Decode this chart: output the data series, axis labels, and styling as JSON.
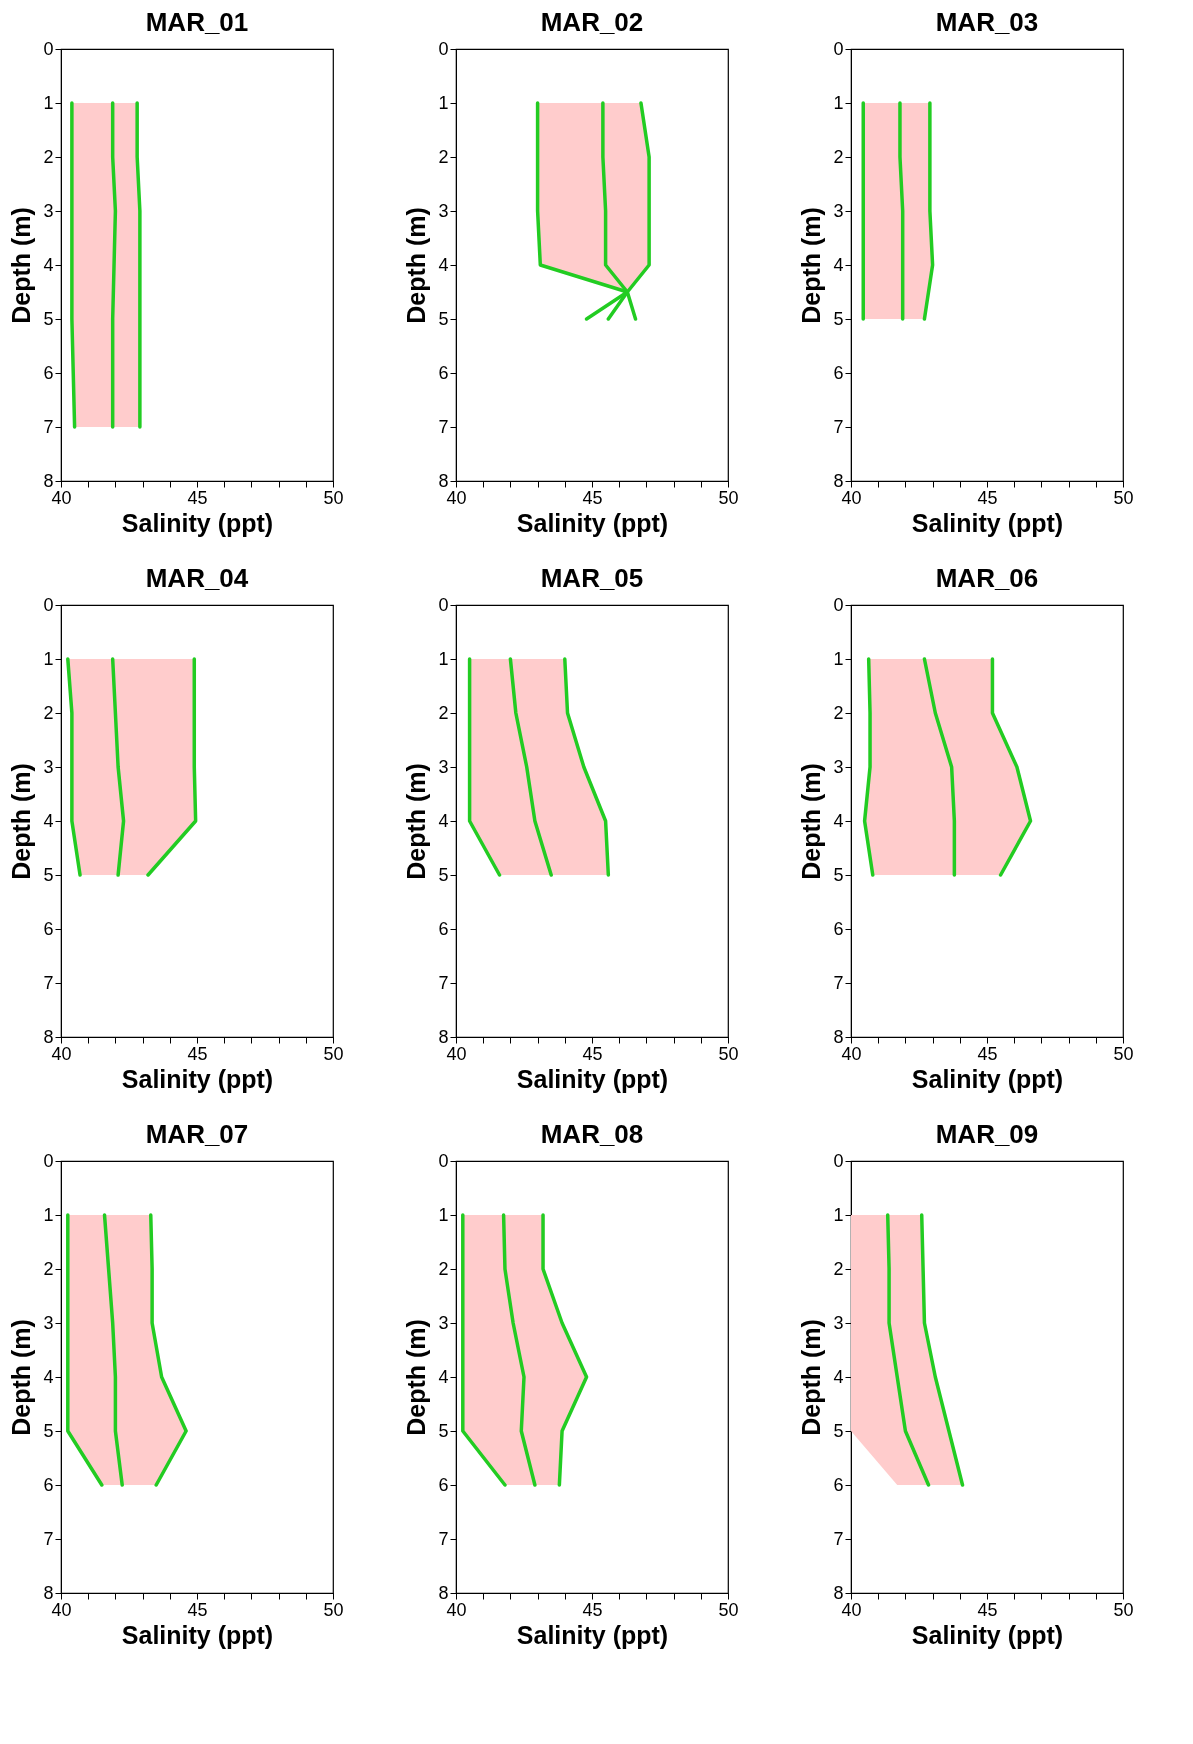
{
  "chart_data": [
    {
      "type": "line",
      "orientation": "horizontal",
      "title": "MAR_01",
      "xlabel": "Salinity (ppt)",
      "ylabel": "Depth (m)",
      "x": [
        1,
        2,
        3,
        4,
        5,
        6,
        7
      ],
      "series": [
        {
          "color": "#22cc22",
          "values": [
            40.4,
            40.4,
            40.4,
            40.4,
            40.4,
            40.45,
            40.5
          ]
        },
        {
          "color": "#22cc22",
          "values": [
            41.9,
            41.9,
            42.0,
            41.95,
            41.9,
            41.9,
            41.9
          ],
          "lower": [
            40.4,
            40.4,
            40.4,
            40.4,
            40.4,
            40.45,
            40.5
          ],
          "upper": [
            42.8,
            42.8,
            42.9,
            42.9,
            42.9,
            42.9,
            42.9
          ]
        },
        {
          "color": "#22cc22",
          "values": [
            42.8,
            42.8,
            42.9,
            42.9,
            42.9,
            42.9,
            42.9
          ]
        }
      ],
      "xlim": [
        40,
        50
      ],
      "xticks": [
        40,
        {
          "value": 41,
          "label": null
        },
        {
          "value": 42,
          "label": null
        },
        {
          "value": 43,
          "label": null
        },
        {
          "value": 44,
          "label": null
        },
        45,
        {
          "value": 46,
          "label": null
        },
        {
          "value": 47,
          "label": null
        },
        {
          "value": 48,
          "label": null
        },
        {
          "value": 49,
          "label": null
        },
        50
      ],
      "ylim": [
        8,
        0
      ],
      "yticks": [
        0,
        1,
        2,
        3,
        4,
        5,
        6,
        7,
        8
      ]
    },
    {
      "type": "line",
      "orientation": "horizontal",
      "title": "MAR_02",
      "xlabel": "Salinity (ppt)",
      "ylabel": "Depth (m)",
      "x": [
        1,
        2,
        3,
        4,
        4.5,
        5
      ],
      "series": [
        {
          "color": "#22cc22",
          "values": [
            43,
            43,
            43,
            43.1,
            46.3,
            44.8
          ]
        },
        {
          "color": "#22cc22",
          "values": [
            45.4,
            45.4,
            45.5,
            45.5,
            46.3,
            45.6
          ],
          "lower": [
            43,
            43,
            43,
            43.1,
            46.3,
            null
          ],
          "upper": [
            46.8,
            47.1,
            47.1,
            47.1,
            46.3,
            null
          ]
        },
        {
          "color": "#22cc22",
          "values": [
            46.8,
            47.1,
            47.1,
            47.1,
            46.3,
            46.6
          ]
        }
      ],
      "xlim": [
        40,
        50
      ],
      "xticks": [
        40,
        {
          "value": 41,
          "label": null
        },
        {
          "value": 42,
          "label": null
        },
        {
          "value": 43,
          "label": null
        },
        {
          "value": 44,
          "label": null
        },
        45,
        {
          "value": 46,
          "label": null
        },
        {
          "value": 47,
          "label": null
        },
        {
          "value": 48,
          "label": null
        },
        {
          "value": 49,
          "label": null
        },
        50
      ],
      "ylim": [
        8,
        0
      ],
      "yticks": [
        0,
        1,
        2,
        3,
        4,
        5,
        6,
        7,
        8
      ]
    },
    {
      "type": "line",
      "orientation": "horizontal",
      "title": "MAR_03",
      "xlabel": "Salinity (ppt)",
      "ylabel": "Depth (m)",
      "x": [
        1,
        2,
        3,
        4,
        5
      ],
      "series": [
        {
          "color": "#22cc22",
          "values": [
            40.45,
            40.45,
            40.45,
            40.45,
            40.45
          ]
        },
        {
          "color": "#22cc22",
          "values": [
            41.8,
            41.8,
            41.9,
            41.9,
            41.9
          ],
          "lower": [
            40.45,
            40.45,
            40.45,
            40.45,
            40.45
          ],
          "upper": [
            42.9,
            42.9,
            42.9,
            43.0,
            42.7
          ]
        },
        {
          "color": "#22cc22",
          "values": [
            42.9,
            42.9,
            42.9,
            43.0,
            42.7
          ]
        }
      ],
      "xlim": [
        40,
        50
      ],
      "xticks": [
        40,
        {
          "value": 41,
          "label": null
        },
        {
          "value": 42,
          "label": null
        },
        {
          "value": 43,
          "label": null
        },
        {
          "value": 44,
          "label": null
        },
        45,
        {
          "value": 46,
          "label": null
        },
        {
          "value": 47,
          "label": null
        },
        {
          "value": 48,
          "label": null
        },
        {
          "value": 49,
          "label": null
        },
        50
      ],
      "ylim": [
        8,
        0
      ],
      "yticks": [
        0,
        1,
        2,
        3,
        4,
        5,
        6,
        7,
        8
      ]
    },
    {
      "type": "line",
      "orientation": "horizontal",
      "title": "MAR_04",
      "xlabel": "Salinity (ppt)",
      "ylabel": "Depth (m)",
      "x": [
        1,
        2,
        3,
        4,
        5
      ],
      "series": [
        {
          "color": "#22cc22",
          "values": [
            40.25,
            40.4,
            40.4,
            40.4,
            40.7
          ]
        },
        {
          "color": "#22cc22",
          "values": [
            41.9,
            42.0,
            42.1,
            42.3,
            42.1
          ],
          "lower": [
            40.25,
            40.4,
            40.4,
            40.4,
            40.7
          ],
          "upper": [
            44.9,
            44.9,
            44.9,
            44.95,
            43.2
          ]
        },
        {
          "color": "#22cc22",
          "values": [
            44.9,
            44.9,
            44.9,
            44.95,
            43.2
          ]
        }
      ],
      "xlim": [
        40,
        50
      ],
      "xticks": [
        40,
        {
          "value": 41,
          "label": null
        },
        {
          "value": 42,
          "label": null
        },
        {
          "value": 43,
          "label": null
        },
        {
          "value": 44,
          "label": null
        },
        45,
        {
          "value": 46,
          "label": null
        },
        {
          "value": 47,
          "label": null
        },
        {
          "value": 48,
          "label": null
        },
        {
          "value": 49,
          "label": null
        },
        50
      ],
      "ylim": [
        8,
        0
      ],
      "yticks": [
        0,
        1,
        2,
        3,
        4,
        5,
        6,
        7,
        8
      ]
    },
    {
      "type": "line",
      "orientation": "horizontal",
      "title": "MAR_05",
      "xlabel": "Salinity (ppt)",
      "ylabel": "Depth (m)",
      "x": [
        1,
        2,
        3,
        4,
        5
      ],
      "series": [
        {
          "color": "#22cc22",
          "values": [
            40.5,
            40.5,
            40.5,
            40.5,
            41.6
          ]
        },
        {
          "color": "#22cc22",
          "values": [
            42.0,
            42.2,
            42.6,
            42.9,
            43.5
          ],
          "lower": [
            40.5,
            40.5,
            40.5,
            40.5,
            41.6
          ],
          "upper": [
            44.0,
            44.1,
            44.7,
            45.5,
            45.6
          ]
        },
        {
          "color": "#22cc22",
          "values": [
            44.0,
            44.1,
            44.7,
            45.5,
            45.6
          ]
        }
      ],
      "xlim": [
        40,
        50
      ],
      "xticks": [
        40,
        {
          "value": 41,
          "label": null
        },
        {
          "value": 42,
          "label": null
        },
        {
          "value": 43,
          "label": null
        },
        {
          "value": 44,
          "label": null
        },
        45,
        {
          "value": 46,
          "label": null
        },
        {
          "value": 47,
          "label": null
        },
        {
          "value": 48,
          "label": null
        },
        {
          "value": 49,
          "label": null
        },
        50
      ],
      "ylim": [
        8,
        0
      ],
      "yticks": [
        0,
        1,
        2,
        3,
        4,
        5,
        6,
        7,
        8
      ]
    },
    {
      "type": "line",
      "orientation": "horizontal",
      "title": "MAR_06",
      "xlabel": "Salinity (ppt)",
      "ylabel": "Depth (m)",
      "x": [
        1,
        2,
        3,
        4,
        5
      ],
      "series": [
        {
          "color": "#22cc22",
          "values": [
            40.65,
            40.7,
            40.7,
            40.5,
            40.8
          ]
        },
        {
          "color": "#22cc22",
          "values": [
            42.7,
            43.1,
            43.7,
            43.8,
            43.8
          ],
          "lower": [
            40.65,
            40.7,
            40.7,
            40.5,
            40.8
          ],
          "upper": [
            45.2,
            45.2,
            46.1,
            46.6,
            45.5
          ]
        },
        {
          "color": "#22cc22",
          "values": [
            45.2,
            45.2,
            46.1,
            46.6,
            45.5
          ]
        }
      ],
      "xlim": [
        40,
        50
      ],
      "xticks": [
        40,
        {
          "value": 41,
          "label": null
        },
        {
          "value": 42,
          "label": null
        },
        {
          "value": 43,
          "label": null
        },
        {
          "value": 44,
          "label": null
        },
        45,
        {
          "value": 46,
          "label": null
        },
        {
          "value": 47,
          "label": null
        },
        {
          "value": 48,
          "label": null
        },
        {
          "value": 49,
          "label": null
        },
        50
      ],
      "ylim": [
        8,
        0
      ],
      "yticks": [
        0,
        1,
        2,
        3,
        4,
        5,
        6,
        7,
        8
      ]
    },
    {
      "type": "line",
      "orientation": "horizontal",
      "title": "MAR_07",
      "xlabel": "Salinity (ppt)",
      "ylabel": "Depth (m)",
      "x": [
        1,
        2,
        3,
        4,
        5,
        6
      ],
      "series": [
        {
          "color": "#22cc22",
          "values": [
            40.25,
            40.25,
            40.25,
            40.25,
            40.25,
            41.5
          ]
        },
        {
          "color": "#22cc22",
          "values": [
            41.6,
            41.75,
            41.9,
            42.0,
            42.0,
            42.25
          ],
          "lower": [
            40.25,
            40.25,
            40.25,
            40.25,
            40.25,
            41.5
          ],
          "upper": [
            43.3,
            43.35,
            43.35,
            43.7,
            44.6,
            43.5
          ]
        },
        {
          "color": "#22cc22",
          "values": [
            43.3,
            43.35,
            43.35,
            43.7,
            44.6,
            43.5
          ]
        }
      ],
      "xlim": [
        40,
        50
      ],
      "xticks": [
        40,
        {
          "value": 41,
          "label": null
        },
        {
          "value": 42,
          "label": null
        },
        {
          "value": 43,
          "label": null
        },
        {
          "value": 44,
          "label": null
        },
        45,
        {
          "value": 46,
          "label": null
        },
        {
          "value": 47,
          "label": null
        },
        {
          "value": 48,
          "label": null
        },
        {
          "value": 49,
          "label": null
        },
        50
      ],
      "ylim": [
        8,
        0
      ],
      "yticks": [
        0,
        1,
        2,
        3,
        4,
        5,
        6,
        7,
        8
      ]
    },
    {
      "type": "line",
      "orientation": "horizontal",
      "title": "MAR_08",
      "xlabel": "Salinity (ppt)",
      "ylabel": "Depth (m)",
      "x": [
        1,
        2,
        3,
        4,
        5,
        6
      ],
      "series": [
        {
          "color": "#22cc22",
          "values": [
            40.25,
            40.25,
            40.25,
            40.25,
            40.25,
            41.8
          ]
        },
        {
          "color": "#22cc22",
          "values": [
            41.75,
            41.8,
            42.1,
            42.5,
            42.4,
            42.9
          ],
          "lower": [
            40.25,
            40.25,
            40.25,
            40.25,
            40.25,
            41.8
          ],
          "upper": [
            43.2,
            43.2,
            43.9,
            44.8,
            43.9,
            43.8
          ]
        },
        {
          "color": "#22cc22",
          "values": [
            43.2,
            43.2,
            43.9,
            44.8,
            43.9,
            43.8
          ]
        }
      ],
      "xlim": [
        40,
        50
      ],
      "xticks": [
        40,
        {
          "value": 41,
          "label": null
        },
        {
          "value": 42,
          "label": null
        },
        {
          "value": 43,
          "label": null
        },
        {
          "value": 44,
          "label": null
        },
        45,
        {
          "value": 46,
          "label": null
        },
        {
          "value": 47,
          "label": null
        },
        {
          "value": 48,
          "label": null
        },
        {
          "value": 49,
          "label": null
        },
        50
      ],
      "ylim": [
        8,
        0
      ],
      "yticks": [
        0,
        1,
        2,
        3,
        4,
        5,
        6,
        7,
        8
      ]
    },
    {
      "type": "line",
      "orientation": "horizontal",
      "title": "MAR_09",
      "xlabel": "Salinity (ppt)",
      "ylabel": "Depth (m)",
      "x": [
        1,
        2,
        3,
        4,
        5,
        6
      ],
      "series": [
        {
          "color": "#22cc22",
          "values": [
            41.35,
            41.4,
            41.4,
            41.7,
            42.0,
            42.85
          ],
          "lower": [
            40,
            40,
            40,
            40,
            40,
            41.7
          ],
          "upper": [
            42.6,
            42.65,
            42.7,
            43.1,
            43.6,
            44.1
          ]
        },
        {
          "color": "#22cc22",
          "values": [
            42.6,
            42.65,
            42.7,
            43.1,
            43.6,
            44.1
          ]
        }
      ],
      "xlim": [
        40,
        50
      ],
      "xticks": [
        40,
        {
          "value": 41,
          "label": null
        },
        {
          "value": 42,
          "label": null
        },
        {
          "value": 43,
          "label": null
        },
        {
          "value": 44,
          "label": null
        },
        45,
        {
          "value": 46,
          "label": null
        },
        {
          "value": 47,
          "label": null
        },
        {
          "value": 48,
          "label": null
        },
        {
          "value": 49,
          "label": null
        },
        50
      ],
      "ylim": [
        8,
        0
      ],
      "yticks": [
        0,
        1,
        2,
        3,
        4,
        5,
        6,
        7,
        8
      ]
    }
  ]
}
